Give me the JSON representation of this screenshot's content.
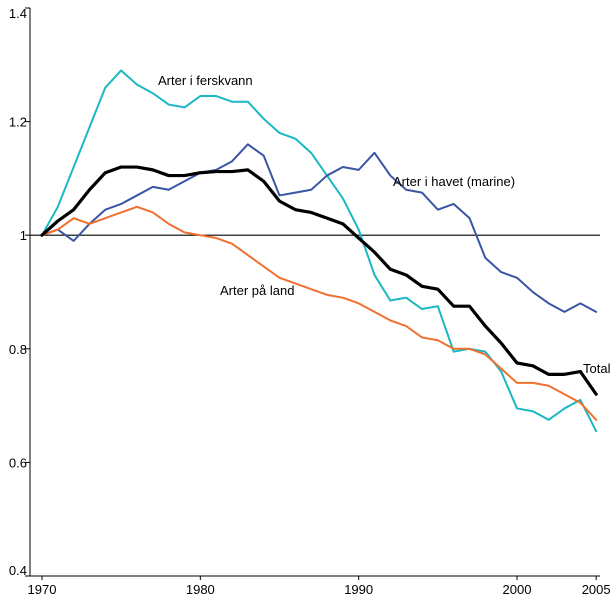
{
  "chart_data": {
    "type": "line",
    "title": "",
    "xlabel": "",
    "ylabel": "",
    "xlim": [
      1970,
      2006
    ],
    "ylim": [
      0.4,
      1.4
    ],
    "x_ticks": [
      1970,
      1980,
      1990,
      2000,
      2005
    ],
    "x_tick_labels": [
      "1970",
      "1980",
      "1990",
      "2000",
      "2005"
    ],
    "y_ticks": [
      0.4,
      0.6,
      0.8,
      1.0,
      1.2,
      1.4
    ],
    "y_tick_labels": [
      "0.4",
      "0.6",
      "0.8",
      "1",
      "1.2",
      "1.4"
    ],
    "reference_line": 1.0,
    "grid": false,
    "legend": "inline labels",
    "x": [
      1970,
      1971,
      1972,
      1973,
      1974,
      1975,
      1976,
      1977,
      1978,
      1979,
      1980,
      1981,
      1982,
      1983,
      1984,
      1985,
      1986,
      1987,
      1988,
      1989,
      1990,
      1991,
      1992,
      1993,
      1994,
      1995,
      1996,
      1997,
      1998,
      1999,
      2000,
      2001,
      2002,
      2003,
      2004,
      2005
    ],
    "series": [
      {
        "name": "Arter i ferskvann",
        "color": "#1ab8c4",
        "width": 2,
        "values": [
          1.0,
          1.05,
          1.12,
          1.19,
          1.26,
          1.29,
          1.265,
          1.25,
          1.23,
          1.225,
          1.245,
          1.245,
          1.235,
          1.235,
          1.205,
          1.18,
          1.17,
          1.145,
          1.105,
          1.065,
          1.01,
          0.93,
          0.885,
          0.89,
          0.87,
          0.875,
          0.795,
          0.8,
          0.795,
          0.76,
          0.695,
          0.69,
          0.675,
          0.695,
          0.71,
          0.655
        ]
      },
      {
        "name": "Arter i havet (marine)",
        "color": "#3a55a4",
        "width": 2,
        "values": [
          1.0,
          1.01,
          0.99,
          1.02,
          1.045,
          1.055,
          1.07,
          1.085,
          1.08,
          1.095,
          1.11,
          1.115,
          1.13,
          1.16,
          1.14,
          1.07,
          1.075,
          1.08,
          1.105,
          1.12,
          1.115,
          1.145,
          1.105,
          1.08,
          1.075,
          1.045,
          1.055,
          1.03,
          0.96,
          0.935,
          0.925,
          0.9,
          0.88,
          0.865,
          0.88,
          0.865
        ]
      },
      {
        "name": "Arter på land",
        "color": "#f07030",
        "width": 2,
        "values": [
          1.0,
          1.01,
          1.03,
          1.02,
          1.03,
          1.04,
          1.05,
          1.04,
          1.02,
          1.005,
          1.0,
          0.995,
          0.985,
          0.965,
          0.945,
          0.925,
          0.915,
          0.905,
          0.895,
          0.89,
          0.88,
          0.865,
          0.85,
          0.84,
          0.82,
          0.815,
          0.8,
          0.8,
          0.79,
          0.765,
          0.74,
          0.74,
          0.735,
          0.72,
          0.705,
          0.675
        ]
      },
      {
        "name": "Total",
        "color": "#000000",
        "width": 3.2,
        "values": [
          1.0,
          1.025,
          1.045,
          1.08,
          1.11,
          1.12,
          1.12,
          1.115,
          1.105,
          1.105,
          1.11,
          1.112,
          1.112,
          1.115,
          1.095,
          1.06,
          1.045,
          1.04,
          1.03,
          1.02,
          0.995,
          0.97,
          0.94,
          0.93,
          0.91,
          0.905,
          0.875,
          0.875,
          0.84,
          0.81,
          0.775,
          0.77,
          0.755,
          0.755,
          0.76,
          0.72
        ]
      }
    ]
  },
  "series_labels": [
    "Arter i ferskvann",
    "Arter i havet (marine)",
    "Arter på land",
    "Total"
  ]
}
